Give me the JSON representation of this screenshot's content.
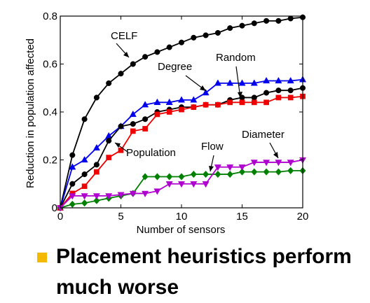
{
  "chart_data": {
    "type": "line",
    "xlabel": "Number of sensors",
    "ylabel": "Reduction in population affected",
    "xlim": [
      0,
      20
    ],
    "ylim": [
      0,
      0.8
    ],
    "xticks": [
      0,
      5,
      10,
      15,
      20
    ],
    "yticks": [
      0,
      0.2,
      0.4,
      0.6,
      0.8
    ],
    "ytick_labels": [
      "0",
      "0.2",
      "0.4",
      "0.6",
      "0.8"
    ],
    "x": [
      0,
      1,
      2,
      3,
      4,
      5,
      6,
      7,
      8,
      9,
      10,
      11,
      12,
      13,
      14,
      15,
      16,
      17,
      18,
      19,
      20
    ],
    "series": [
      {
        "name": "CELF",
        "color": "#000000",
        "marker": "circle",
        "values": [
          0.0,
          0.22,
          0.37,
          0.46,
          0.52,
          0.56,
          0.6,
          0.63,
          0.65,
          0.67,
          0.69,
          0.71,
          0.72,
          0.73,
          0.75,
          0.76,
          0.77,
          0.78,
          0.78,
          0.79,
          0.795
        ]
      },
      {
        "name": "Degree",
        "color": "#0000ee",
        "marker": "triangle-up",
        "values": [
          0.0,
          0.17,
          0.2,
          0.25,
          0.3,
          0.34,
          0.39,
          0.43,
          0.44,
          0.44,
          0.45,
          0.45,
          0.48,
          0.52,
          0.52,
          0.52,
          0.52,
          0.53,
          0.53,
          0.53,
          0.535
        ]
      },
      {
        "name": "Random",
        "color": "#000000",
        "marker": "circle",
        "values": [
          0.0,
          0.1,
          0.14,
          0.18,
          0.28,
          0.34,
          0.35,
          0.37,
          0.4,
          0.41,
          0.42,
          0.42,
          0.43,
          0.43,
          0.45,
          0.46,
          0.46,
          0.48,
          0.49,
          0.49,
          0.5
        ]
      },
      {
        "name": "Population",
        "color": "#ee0000",
        "marker": "square",
        "values": [
          0.0,
          0.06,
          0.09,
          0.15,
          0.21,
          0.24,
          0.32,
          0.33,
          0.39,
          0.4,
          0.41,
          0.42,
          0.43,
          0.43,
          0.44,
          0.44,
          0.44,
          0.44,
          0.46,
          0.46,
          0.465
        ]
      },
      {
        "name": "Flow",
        "color": "#008000",
        "marker": "diamond",
        "values": [
          0.0,
          0.015,
          0.02,
          0.03,
          0.04,
          0.05,
          0.06,
          0.13,
          0.13,
          0.13,
          0.13,
          0.14,
          0.14,
          0.14,
          0.14,
          0.15,
          0.15,
          0.15,
          0.15,
          0.155,
          0.155
        ]
      },
      {
        "name": "Diameter",
        "color": "#b000d0",
        "marker": "triangle-down",
        "values": [
          0.0,
          0.05,
          0.05,
          0.05,
          0.05,
          0.055,
          0.06,
          0.06,
          0.07,
          0.1,
          0.1,
          0.1,
          0.1,
          0.17,
          0.17,
          0.17,
          0.19,
          0.19,
          0.19,
          0.19,
          0.2
        ]
      }
    ],
    "annotations": [
      "CELF",
      "Degree",
      "Random",
      "Population",
      "Flow",
      "Diameter"
    ]
  },
  "bullet": {
    "text": "Placement heuristics perform much worse",
    "color": "#f5b800"
  }
}
